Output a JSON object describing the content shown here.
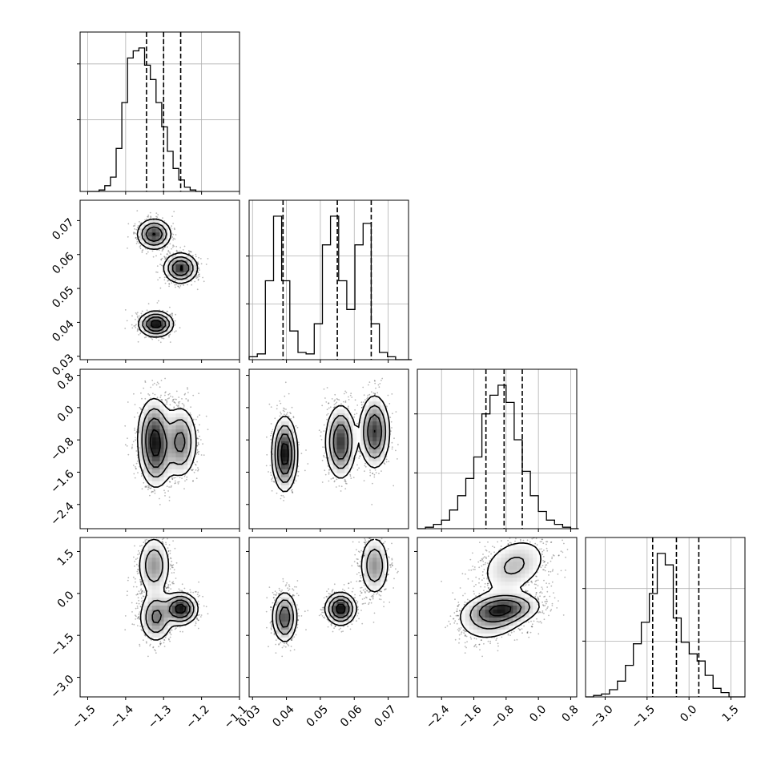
{
  "chart_data": {
    "type": "corner",
    "n_params": 4,
    "parameters": [
      {
        "index": 0,
        "range": [
          -1.52,
          -1.1
        ],
        "quantiles": [
          -1.345,
          -1.3,
          -1.255
        ],
        "axis_label": ""
      },
      {
        "index": 1,
        "range": [
          0.029,
          0.076
        ],
        "quantiles": [
          0.039,
          0.055,
          0.065
        ],
        "axis_label": ""
      },
      {
        "index": 2,
        "range": [
          -3.0,
          0.95
        ],
        "quantiles": [
          -1.3,
          -0.85,
          -0.4
        ],
        "axis_label": ""
      },
      {
        "index": 3,
        "range": [
          -3.7,
          2.0
        ],
        "quantiles": [
          -1.3,
          -0.45,
          0.35
        ],
        "axis_label": ""
      }
    ],
    "ticks": {
      "p0": [
        "−1.5",
        "−1.4",
        "−1.3",
        "−1.2",
        "−1.1"
      ],
      "p1": [
        "0.03",
        "0.04",
        "0.05",
        "0.06",
        "0.07"
      ],
      "p2": [
        "−2.4",
        "−1.6",
        "−0.8",
        "0.0",
        "0.8"
      ],
      "p3": [
        "−3.0",
        "−1.5",
        "0.0",
        "1.5"
      ]
    },
    "tick_values": {
      "p0": [
        -1.5,
        -1.4,
        -1.3,
        -1.2,
        -1.1
      ],
      "p1": [
        0.03,
        0.04,
        0.05,
        0.06,
        0.07
      ],
      "p2": [
        -2.4,
        -1.6,
        -0.8,
        0.0,
        0.8
      ],
      "p3": [
        -3.0,
        -1.5,
        0.0,
        1.5
      ]
    },
    "hist_y_ticks": {
      "p0": [
        0.45,
        0.8
      ],
      "p1": [
        0.35,
        0.65
      ],
      "p2": [
        0.35,
        0.72
      ],
      "p3": [
        0.35,
        0.68
      ]
    },
    "histograms": {
      "p0": {
        "bin_start": -1.5,
        "bin_width": 0.015,
        "counts": [
          0.0,
          0.0,
          0.01,
          0.04,
          0.1,
          0.3,
          0.62,
          0.93,
          0.98,
          1.0,
          0.88,
          0.78,
          0.62,
          0.45,
          0.28,
          0.16,
          0.08,
          0.03,
          0.01,
          0.0
        ]
      },
      "p1": {
        "bin_start": 0.029,
        "bin_width": 0.0024,
        "counts": [
          0.02,
          0.04,
          0.55,
          1.0,
          0.55,
          0.2,
          0.05,
          0.04,
          0.25,
          0.8,
          1.0,
          0.55,
          0.35,
          0.8,
          0.95,
          0.25,
          0.05,
          0.02,
          0.0,
          0.0
        ]
      },
      "p2": {
        "bin_start": -3.0,
        "bin_width": 0.2,
        "counts": [
          0.0,
          0.01,
          0.03,
          0.06,
          0.13,
          0.23,
          0.35,
          0.5,
          0.8,
          0.93,
          1.0,
          0.88,
          0.62,
          0.4,
          0.23,
          0.12,
          0.06,
          0.03,
          0.01,
          0.0
        ]
      },
      "p3": {
        "bin_start": -3.7,
        "bin_width": 0.285,
        "counts": [
          0.0,
          0.01,
          0.02,
          0.05,
          0.11,
          0.22,
          0.37,
          0.52,
          0.72,
          1.0,
          0.92,
          0.55,
          0.38,
          0.3,
          0.25,
          0.15,
          0.06,
          0.03,
          0.0,
          0.0
        ]
      }
    },
    "components": [
      {
        "weight": 0.33,
        "mean": [
          -1.325,
          0.066,
          -0.6,
          1.0
        ],
        "sd": [
          0.022,
          0.0022,
          0.45,
          0.55
        ],
        "rho": {
          "2-3": 0.3
        }
      },
      {
        "weight": 0.34,
        "mean": [
          -1.255,
          0.056,
          -0.85,
          -0.55
        ],
        "sd": [
          0.022,
          0.0022,
          0.45,
          0.28
        ],
        "rho": {
          "2-3": 0.2
        }
      },
      {
        "weight": 0.33,
        "mean": [
          -1.32,
          0.0395,
          -1.15,
          -0.85
        ],
        "sd": [
          0.022,
          0.0018,
          0.45,
          0.45
        ],
        "rho": {
          "2-3": 0.2
        }
      }
    ],
    "pairs": [
      {
        "row": 1,
        "col": 0
      },
      {
        "row": 2,
        "col": 0
      },
      {
        "row": 2,
        "col": 1
      },
      {
        "row": 3,
        "col": 0
      },
      {
        "row": 3,
        "col": 1
      },
      {
        "row": 3,
        "col": 2
      }
    ],
    "grid": true,
    "colors": {
      "line": "#000000",
      "grid": "#b0b0b0",
      "density": "#000000",
      "background": "#ffffff"
    }
  }
}
